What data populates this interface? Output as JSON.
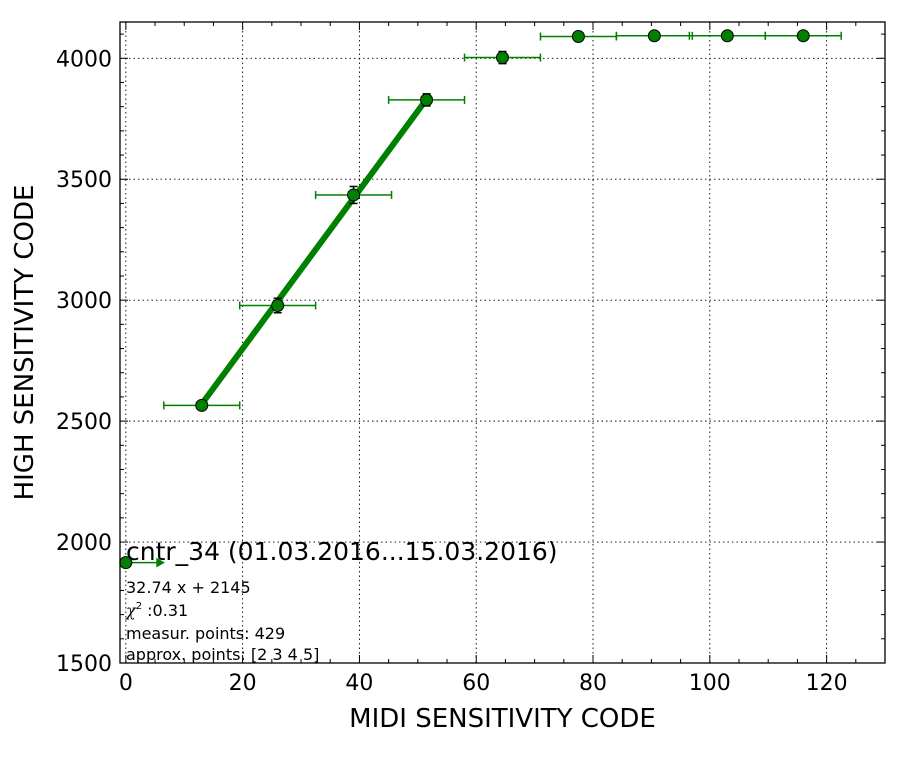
{
  "chart_data": {
    "type": "scatter",
    "title": "cntr_34 (01.03.2016...15.03.2016)",
    "xlabel": "MIDI SENSITIVITY CODE",
    "ylabel": "HIGH SENSITIVITY CODE",
    "xlim": [
      -1,
      130
    ],
    "ylim": [
      1500,
      4150
    ],
    "x_ticks": [
      0,
      20,
      40,
      60,
      80,
      100,
      120
    ],
    "y_ticks": [
      1500,
      2000,
      2500,
      3000,
      3500,
      4000
    ],
    "grid": true,
    "color": "#008000",
    "points": [
      {
        "x": 0,
        "y": 1915,
        "xerr_minus": 0,
        "xerr_plus": 6.5,
        "yerr": 0
      },
      {
        "x": 13,
        "y": 2565,
        "xerr_minus": 6.5,
        "xerr_plus": 6.5,
        "yerr": 15
      },
      {
        "x": 26,
        "y": 2978,
        "xerr_minus": 6.5,
        "xerr_plus": 6.5,
        "yerr": 30
      },
      {
        "x": 39,
        "y": 3435,
        "xerr_minus": 6.5,
        "xerr_plus": 6.5,
        "yerr": 35
      },
      {
        "x": 51.5,
        "y": 3828,
        "xerr_minus": 6.5,
        "xerr_plus": 6.5,
        "yerr": 25
      },
      {
        "x": 64.5,
        "y": 4003,
        "xerr_minus": 6.5,
        "xerr_plus": 6.5,
        "yerr": 25
      },
      {
        "x": 77.5,
        "y": 4090,
        "xerr_minus": 6.5,
        "xerr_plus": 6.5,
        "yerr": 8
      },
      {
        "x": 90.5,
        "y": 4093,
        "xerr_minus": 6.5,
        "xerr_plus": 6.5,
        "yerr": 6
      },
      {
        "x": 103,
        "y": 4093,
        "xerr_minus": 6.5,
        "xerr_plus": 6.5,
        "yerr": 6
      },
      {
        "x": 116,
        "y": 4093,
        "xerr_minus": 6.5,
        "xerr_plus": 6.5,
        "yerr": 6
      }
    ],
    "fit": {
      "slope": 32.74,
      "intercept": 2145,
      "x_range": [
        13,
        51.5
      ]
    },
    "annotations": {
      "equation": "32.74 x + 2145",
      "chi2_label": "χ",
      "chi2_sup": "2",
      "chi2_value": " :0.31",
      "measur_points": "measur. points: 429",
      "approx_points": "approx. points: [2 3 4 5]"
    }
  }
}
